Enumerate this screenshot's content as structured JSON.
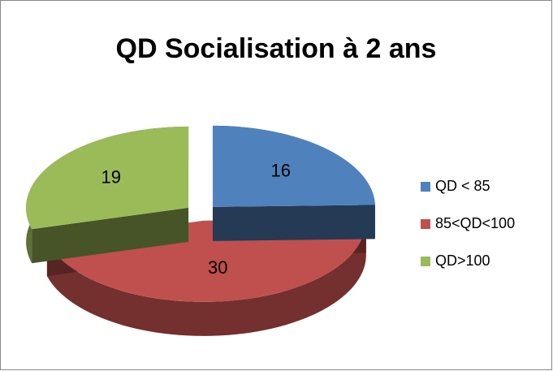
{
  "chart_data": {
    "type": "pie",
    "title": "QD Socialisation à 2 ans",
    "categories": [
      "QD < 85",
      "85<QD<100",
      "QD>100"
    ],
    "values": [
      16,
      30,
      19
    ],
    "colors": [
      "#4f81bd",
      "#c0504d",
      "#9bbb59"
    ],
    "legend": "right",
    "exploded": true,
    "three_d": true
  }
}
